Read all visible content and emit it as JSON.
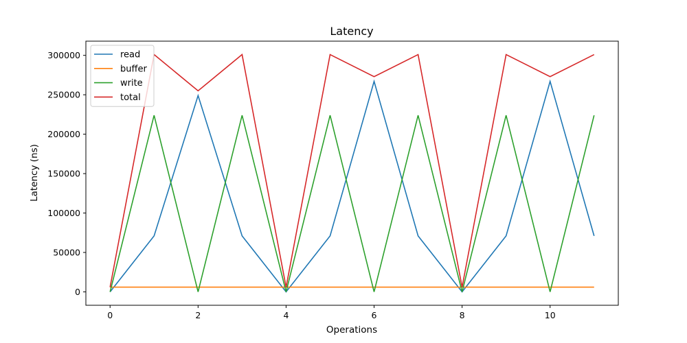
{
  "chart_data": {
    "type": "line",
    "title": "Latency",
    "xlabel": "Operations",
    "ylabel": "Latency (ns)",
    "x": [
      0,
      1,
      2,
      3,
      4,
      5,
      6,
      7,
      8,
      9,
      10,
      11
    ],
    "xlim": [
      -0.55,
      11.55
    ],
    "ylim": [
      -17000,
      318000
    ],
    "xticks": [
      0,
      2,
      4,
      6,
      8,
      10
    ],
    "yticks": [
      0,
      50000,
      100000,
      150000,
      200000,
      250000,
      300000
    ],
    "legend_position": "upper-left",
    "grid": false,
    "series": [
      {
        "name": "read",
        "color": "#1f77b4",
        "values": [
          0,
          71000,
          249000,
          71000,
          0,
          71000,
          267000,
          71000,
          0,
          71000,
          267000,
          71000
        ]
      },
      {
        "name": "buffer",
        "color": "#ff7f0e",
        "values": [
          6000,
          6000,
          6000,
          6000,
          6000,
          6000,
          6000,
          6000,
          6000,
          6000,
          6000,
          6000
        ]
      },
      {
        "name": "write",
        "color": "#2ca02c",
        "values": [
          0,
          224000,
          0,
          224000,
          0,
          224000,
          0,
          224000,
          0,
          224000,
          0,
          224000
        ]
      },
      {
        "name": "total",
        "color": "#d62728",
        "values": [
          6000,
          301000,
          255000,
          301000,
          6000,
          301000,
          273000,
          301000,
          6000,
          301000,
          273000,
          301000
        ]
      }
    ]
  }
}
